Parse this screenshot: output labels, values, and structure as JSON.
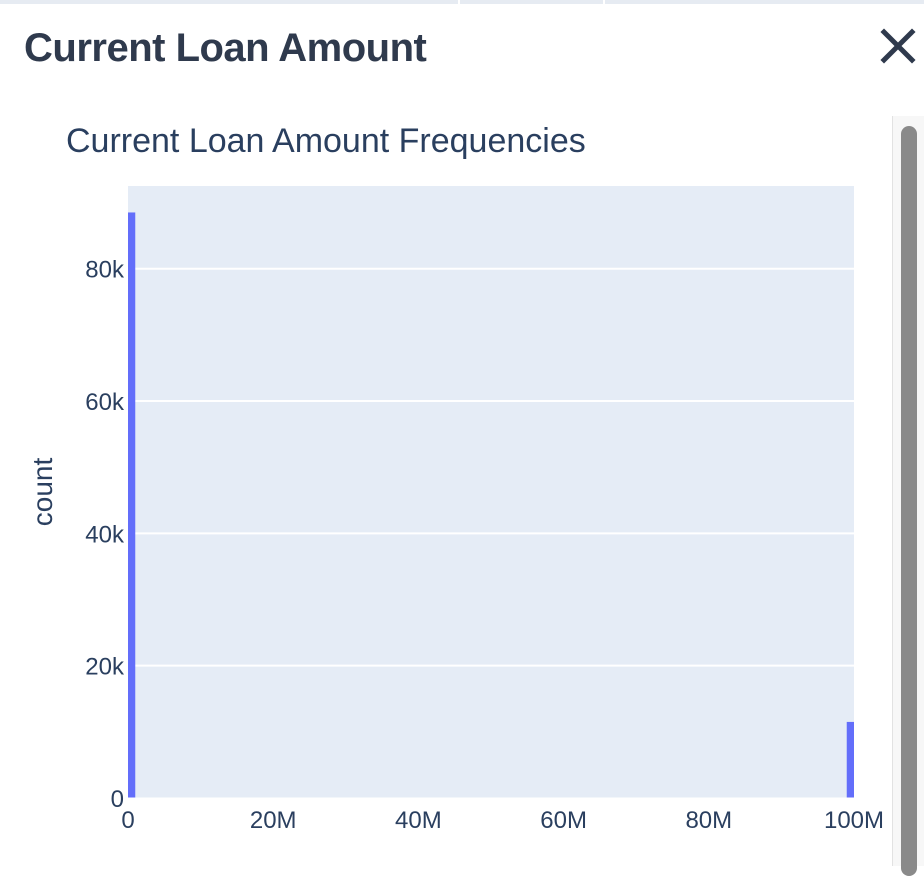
{
  "panel": {
    "title": "Current Loan Amount",
    "close_icon": "close-icon"
  },
  "chart_data": {
    "type": "bar",
    "title": "Current Loan Amount Frequencies",
    "xlabel": "",
    "ylabel": "count",
    "xlim": [
      0,
      100000000
    ],
    "ylim": [
      0,
      92500
    ],
    "x_ticks": [
      0,
      20000000,
      40000000,
      60000000,
      80000000,
      100000000
    ],
    "x_tick_labels": [
      "0",
      "20M",
      "40M",
      "60M",
      "80M",
      "100M"
    ],
    "y_ticks": [
      0,
      20000,
      40000,
      60000,
      80000
    ],
    "y_tick_labels": [
      "0",
      "20k",
      "40k",
      "60k",
      "80k"
    ],
    "bins": [
      {
        "x0": 0,
        "x1": 1000000,
        "count": 88500
      },
      {
        "x0": 99000000,
        "x1": 100000000,
        "count": 11500
      }
    ],
    "grid": true,
    "colors": {
      "bar": "#636efa",
      "plot_bg": "#e5ecf6",
      "grid": "#ffffff",
      "text": "#2a3f5f"
    }
  }
}
